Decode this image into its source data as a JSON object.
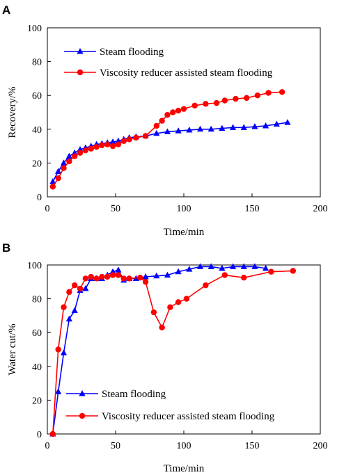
{
  "chart_data": [
    {
      "panel": "A",
      "type": "line",
      "xlabel": "Time/min",
      "ylabel": "Recovery/%",
      "xlim": [
        0,
        200
      ],
      "ylim": [
        0,
        100
      ],
      "xticks": [
        0,
        50,
        100,
        150,
        200
      ],
      "yticks": [
        0,
        20,
        40,
        60,
        80,
        100
      ],
      "grid": false,
      "legend": "top-left",
      "series": [
        {
          "name": "Steam flooding",
          "color": "#0000ff",
          "marker": "triangle",
          "points": [
            [
              4,
              9
            ],
            [
              8,
              15
            ],
            [
              12,
              20
            ],
            [
              16,
              24
            ],
            [
              20,
              26
            ],
            [
              24,
              28
            ],
            [
              28,
              29
            ],
            [
              32,
              30
            ],
            [
              36,
              31
            ],
            [
              40,
              31.5
            ],
            [
              44,
              32
            ],
            [
              48,
              32.5
            ],
            [
              52,
              33
            ],
            [
              56,
              34
            ],
            [
              60,
              35
            ],
            [
              65,
              35.5
            ],
            [
              72,
              36
            ],
            [
              80,
              37.5
            ],
            [
              88,
              38.5
            ],
            [
              96,
              39
            ],
            [
              104,
              39.5
            ],
            [
              112,
              40
            ],
            [
              120,
              40
            ],
            [
              128,
              40.5
            ],
            [
              136,
              41
            ],
            [
              144,
              41
            ],
            [
              152,
              41.5
            ],
            [
              160,
              42
            ],
            [
              168,
              43
            ],
            [
              176,
              44
            ]
          ]
        },
        {
          "name": "Viscosity reducer assisted steam flooding",
          "color": "#ff0000",
          "marker": "circle",
          "points": [
            [
              4,
              6
            ],
            [
              8,
              11
            ],
            [
              12,
              17
            ],
            [
              16,
              21
            ],
            [
              20,
              24
            ],
            [
              24,
              26
            ],
            [
              28,
              27.5
            ],
            [
              32,
              28.5
            ],
            [
              36,
              29.5
            ],
            [
              40,
              30.5
            ],
            [
              44,
              31
            ],
            [
              48,
              30
            ],
            [
              52,
              31
            ],
            [
              56,
              33
            ],
            [
              60,
              34
            ],
            [
              65,
              35
            ],
            [
              72,
              36
            ],
            [
              80,
              42
            ],
            [
              84,
              45
            ],
            [
              88,
              48.5
            ],
            [
              92,
              50
            ],
            [
              96,
              51
            ],
            [
              100,
              52
            ],
            [
              108,
              54
            ],
            [
              116,
              55
            ],
            [
              124,
              55.5
            ],
            [
              130,
              57
            ],
            [
              138,
              58
            ],
            [
              146,
              58.5
            ],
            [
              154,
              60
            ],
            [
              162,
              61.5
            ],
            [
              172,
              62
            ]
          ]
        }
      ]
    },
    {
      "panel": "B",
      "type": "line",
      "xlabel": "Time/min",
      "ylabel": "Water cut/%",
      "xlim": [
        0,
        200
      ],
      "ylim": [
        0,
        100
      ],
      "xticks": [
        0,
        50,
        100,
        150,
        200
      ],
      "yticks": [
        0,
        20,
        40,
        60,
        80,
        100
      ],
      "grid": false,
      "legend": "bottom-left",
      "series": [
        {
          "name": "Steam flooding",
          "color": "#0000ff",
          "marker": "triangle",
          "points": [
            [
              4,
              0
            ],
            [
              8,
              25
            ],
            [
              12,
              48
            ],
            [
              16,
              68
            ],
            [
              20,
              73
            ],
            [
              24,
              85
            ],
            [
              28,
              86
            ],
            [
              32,
              92
            ],
            [
              36,
              92
            ],
            [
              40,
              92
            ],
            [
              44,
              94
            ],
            [
              48,
              96
            ],
            [
              52,
              97
            ],
            [
              56,
              91
            ],
            [
              60,
              92
            ],
            [
              65,
              92
            ],
            [
              72,
              93
            ],
            [
              80,
              93.5
            ],
            [
              88,
              94
            ],
            [
              96,
              96
            ],
            [
              104,
              97.5
            ],
            [
              112,
              99
            ],
            [
              120,
              99
            ],
            [
              128,
              98
            ],
            [
              136,
              99
            ],
            [
              144,
              99
            ],
            [
              152,
              99
            ],
            [
              160,
              98
            ]
          ]
        },
        {
          "name": "Viscosity reducer assisted steam flooding",
          "color": "#ff0000",
          "marker": "circle",
          "points": [
            [
              4,
              0
            ],
            [
              8,
              50
            ],
            [
              12,
              75
            ],
            [
              16,
              84
            ],
            [
              20,
              88
            ],
            [
              24,
              86
            ],
            [
              28,
              92
            ],
            [
              32,
              93
            ],
            [
              36,
              92
            ],
            [
              40,
              93
            ],
            [
              44,
              93
            ],
            [
              48,
              94
            ],
            [
              52,
              94
            ],
            [
              56,
              92
            ],
            [
              60,
              92
            ],
            [
              68,
              92.5
            ],
            [
              72,
              90
            ],
            [
              78,
              72
            ],
            [
              84,
              63
            ],
            [
              90,
              75
            ],
            [
              96,
              78
            ],
            [
              102,
              80
            ],
            [
              116,
              88
            ],
            [
              130,
              94
            ],
            [
              144,
              92.5
            ],
            [
              164,
              96
            ],
            [
              180,
              96.5
            ]
          ]
        }
      ]
    }
  ]
}
